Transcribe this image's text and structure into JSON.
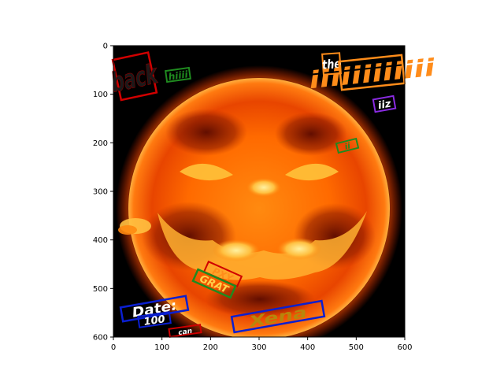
{
  "axes": {
    "x_ticks": [
      "0",
      "100",
      "200",
      "300",
      "400",
      "500",
      "600"
    ],
    "y_ticks": [
      "0",
      "100",
      "200",
      "300",
      "400",
      "500",
      "600"
    ],
    "xlim": [
      0,
      600
    ],
    "ylim": [
      600,
      0
    ]
  },
  "image": {
    "subject": "sun-with-jack-o-lantern-face",
    "background_color": "#000000",
    "sun_colors": [
      "#fff1a0",
      "#ffae2b",
      "#ff6a00",
      "#d83000",
      "#7a0e00"
    ]
  },
  "annotations": [
    {
      "text": "back",
      "box_color": "#d00000",
      "text_color": "#1a1a1a"
    },
    {
      "text": "hiiii",
      "box_color": "#1f8a1f",
      "text_color": "#1f8a1f"
    },
    {
      "text": "the",
      "box_color": "#ff8c1a",
      "text_color": "#ffffff"
    },
    {
      "text": "iiiiiiiiiiii",
      "box_color": "#ff8c1a",
      "text_color": "#ff8c1a"
    },
    {
      "text": "iiz",
      "box_color": "#8a2be2",
      "text_color": "#ffffff"
    },
    {
      "text": "ii",
      "box_color": "#1f8a1f",
      "text_color": "#1f8a1f"
    },
    {
      "text": "PXY",
      "box_color": "#d00000",
      "text_color": "#ff8c1a"
    },
    {
      "text": "GRAT",
      "box_color": "#1f8a1f",
      "text_color": "#ffd24a"
    },
    {
      "text": "Date:",
      "box_color": "#0a1fd0",
      "text_color": "#ffffff"
    },
    {
      "text": "100",
      "box_color": "#0a1fd0",
      "text_color": "#ffffff"
    },
    {
      "text": "can",
      "box_color": "#d00000",
      "text_color": "#ffffff"
    },
    {
      "text": "Xena",
      "box_color": "#0a1fd0",
      "text_color": "#b8860b"
    }
  ]
}
